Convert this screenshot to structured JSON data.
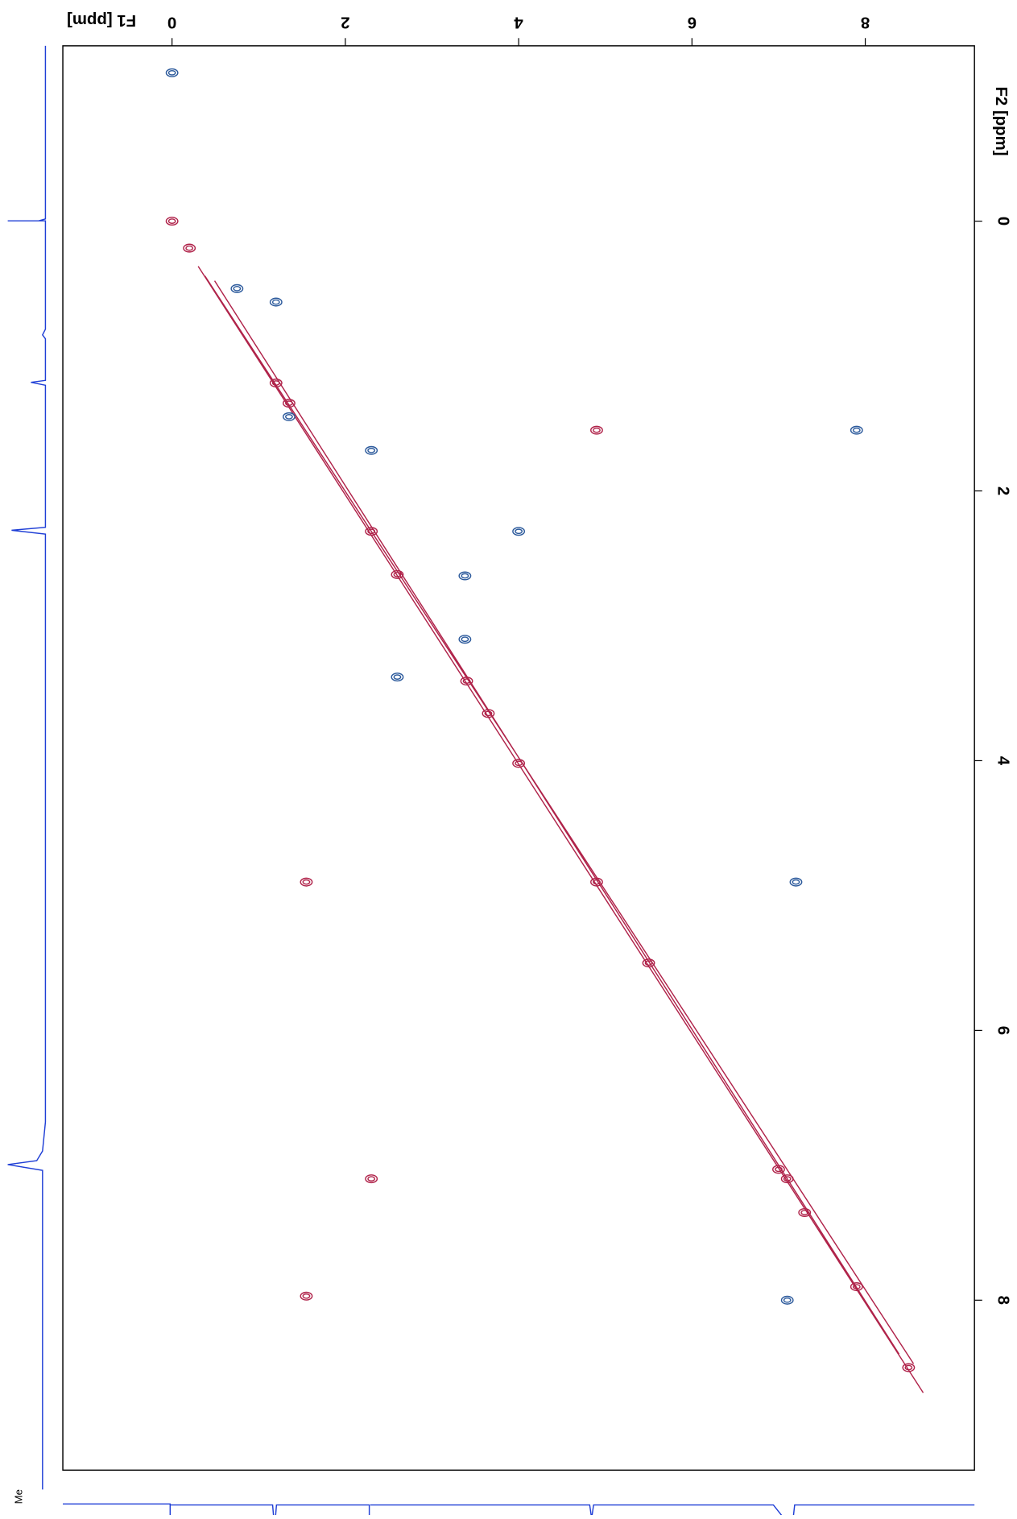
{
  "chart_data": {
    "type": "contour",
    "x_label": "F1 [ppm]",
    "y_label": "F2 [ppm]",
    "annotation": "Me",
    "xlim": [
      -1.26,
      9.26
    ],
    "xticks": [
      0,
      2,
      4,
      6,
      8
    ],
    "ylim": [
      -1.3,
      9.26
    ],
    "yticks": [
      0,
      2,
      4,
      6,
      8
    ],
    "series": [
      {
        "color": "#b0234a",
        "x": [
          0,
          1.2,
          1.35,
          2.3,
          2.6,
          3.4,
          3.65,
          4.0,
          4.9,
          5.5,
          7.0,
          7.1,
          7.3,
          7.9,
          8.5,
          4.9,
          1.55,
          1.55,
          2.3,
          0.2
        ],
        "y": [
          0,
          1.2,
          1.35,
          2.3,
          2.62,
          3.41,
          3.65,
          4.02,
          4.9,
          5.5,
          7.03,
          7.1,
          7.35,
          7.9,
          8.5,
          1.55,
          4.9,
          7.97,
          7.1,
          0.2
        ]
      },
      {
        "color": "#2c5a9c",
        "x": [
          0,
          0.75,
          1.2,
          3.38,
          2.6,
          7.2,
          7.9,
          4.0,
          1.35,
          2.3,
          7.1,
          3.38
        ],
        "y": [
          -1.1,
          0.5,
          0.6,
          2.63,
          3.38,
          4.9,
          1.55,
          2.3,
          1.45,
          1.7,
          8.0,
          3.1
        ]
      }
    ]
  }
}
